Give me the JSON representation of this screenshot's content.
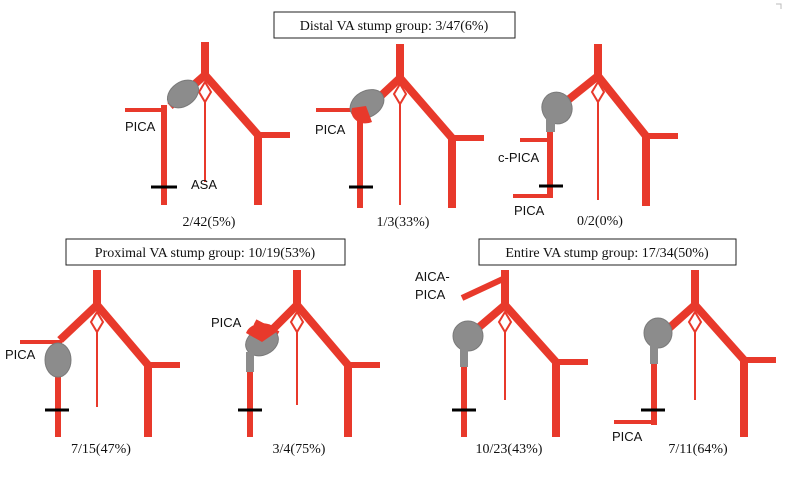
{
  "groups": {
    "distal": {
      "title": "Distal VA stump group: 3/47(6%)"
    },
    "proximal": {
      "title": "Proximal VA stump group: 10/19(53%)"
    },
    "entire": {
      "title": "Entire VA stump group: 17/34(50%)"
    }
  },
  "panels": {
    "d1": {
      "fraction": "2/42(5%)",
      "labels": {
        "pica": "PICA",
        "asa": "ASA"
      }
    },
    "d2": {
      "fraction": "1/3(33%)",
      "labels": {
        "pica": "PICA"
      }
    },
    "d3": {
      "fraction": "0/2(0%)",
      "labels": {
        "cpica": "c-PICA",
        "pica": "PICA"
      }
    },
    "p1": {
      "fraction": "7/15(47%)",
      "labels": {
        "pica": "PICA"
      }
    },
    "p2": {
      "fraction": "3/4(75%)",
      "labels": {
        "pica": "PICA"
      }
    },
    "e1": {
      "fraction": "10/23(43%)",
      "labels": {
        "aica_line1": "AICA-",
        "aica_line2": "PICA"
      }
    },
    "e2": {
      "fraction": "7/11(64%)",
      "labels": {
        "pica": "PICA"
      }
    }
  },
  "colors": {
    "vessel": "#e8392b",
    "aneurysm": "#8c8c8c",
    "ligation": "#000000"
  }
}
